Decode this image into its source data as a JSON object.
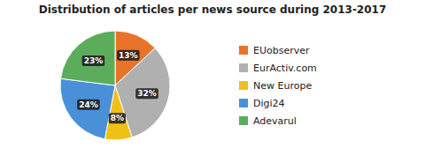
{
  "chart_data": {
    "type": "pie",
    "title": "Distribution of articles per news source during 2013-2017",
    "categories": [
      "EUobserver",
      "EurActiv.com",
      "New Europe",
      "Digi24",
      "Adevarul"
    ],
    "values": [
      13,
      32,
      8,
      24,
      23
    ],
    "value_labels": [
      "13%",
      "32%",
      "8%",
      "24%",
      "23%"
    ],
    "colors": [
      "#E8732A",
      "#B0B0B0",
      "#F0C019",
      "#4A90D9",
      "#5BAD5B"
    ],
    "data_labels": true,
    "legend": "right"
  }
}
